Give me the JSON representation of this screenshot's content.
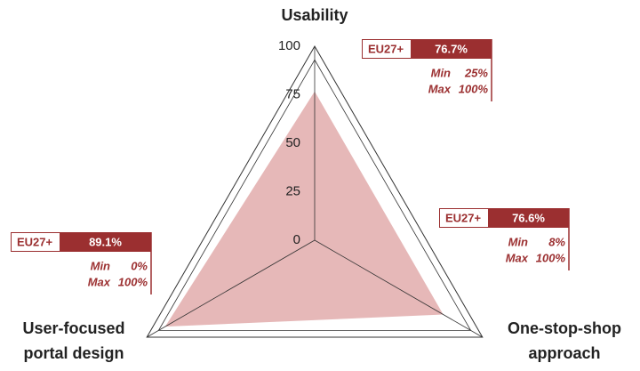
{
  "chart_data": {
    "type": "radar",
    "categories": [
      "Usability",
      "One-stop-shop\napproach",
      "User-focused\nportal design"
    ],
    "series": [
      {
        "name": "EU27+",
        "color": "#e6b8b8",
        "values": [
          76.7,
          76.6,
          89.1
        ],
        "value_labels": [
          "76.7%",
          "76.6%",
          "89.1%"
        ]
      }
    ],
    "rlim": [
      0,
      100
    ],
    "rticks": [
      0,
      25,
      50,
      75,
      100
    ],
    "boxes": [
      {
        "min_label": "Min",
        "min": "25%",
        "max_label": "Max",
        "max": "100%"
      },
      {
        "min_label": "Min",
        "min": "8%",
        "max_label": "Max",
        "max": "100%"
      },
      {
        "min_label": "Min",
        "min": "0%",
        "max_label": "Max",
        "max": "100%"
      }
    ],
    "box_color": "#9b2f30"
  }
}
